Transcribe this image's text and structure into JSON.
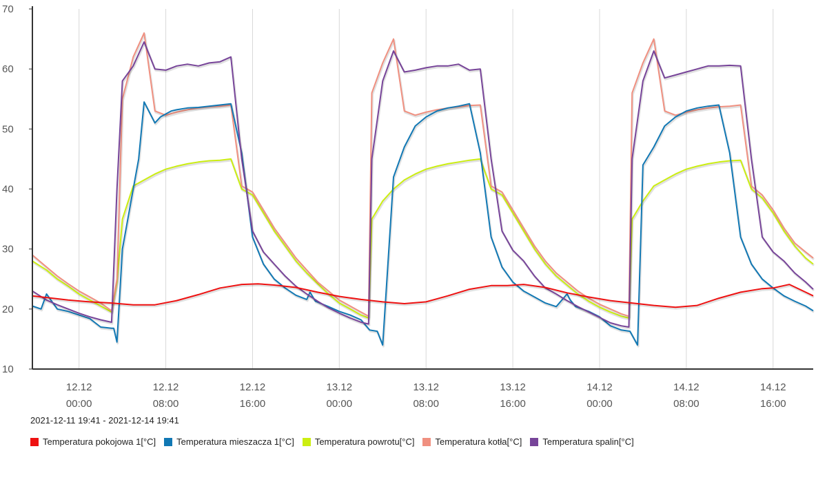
{
  "chart_data": {
    "type": "line",
    "title": "",
    "xlabel": "",
    "ylabel": "",
    "range_label": "2021-12-11 19:41 - 2021-12-14 19:41",
    "x_range_hours": [
      -4.3,
      67.7
    ],
    "ylim": [
      10,
      70
    ],
    "yticks": [
      10,
      20,
      30,
      40,
      50,
      60,
      70
    ],
    "xticks": [
      {
        "hour": 0,
        "date": "12.12",
        "time": "00:00"
      },
      {
        "hour": 8,
        "date": "12.12",
        "time": "08:00"
      },
      {
        "hour": 16,
        "date": "12.12",
        "time": "16:00"
      },
      {
        "hour": 24,
        "date": "13.12",
        "time": "00:00"
      },
      {
        "hour": 32,
        "date": "13.12",
        "time": "08:00"
      },
      {
        "hour": 40,
        "date": "13.12",
        "time": "16:00"
      },
      {
        "hour": 48,
        "date": "14.12",
        "time": "00:00"
      },
      {
        "hour": 56,
        "date": "14.12",
        "time": "08:00"
      },
      {
        "hour": 64,
        "date": "14.12",
        "time": "16:00"
      }
    ],
    "grid": "vertical",
    "legend_position": "bottom-left",
    "series": [
      {
        "name": "Temperatura pokojowa 1[°C]",
        "color": "#ee1111",
        "x": [
          -4.3,
          -1,
          1,
          3,
          5,
          7,
          9,
          11,
          13,
          15,
          16.5,
          18,
          20,
          22,
          24,
          26,
          28,
          30,
          32,
          34,
          36,
          38,
          39.5,
          41,
          43,
          45,
          47,
          49,
          51,
          53,
          55,
          57,
          59,
          61,
          63,
          64,
          65.5,
          67,
          67.7
        ],
        "y": [
          22.2,
          21.5,
          21.2,
          21,
          20.7,
          20.7,
          21.4,
          22.4,
          23.5,
          24.1,
          24.2,
          24,
          23.6,
          22.8,
          22.1,
          21.6,
          21.2,
          20.9,
          21.2,
          22.2,
          23.3,
          23.9,
          23.9,
          24.1,
          23.6,
          22.7,
          22,
          21.4,
          21,
          20.6,
          20.3,
          20.6,
          21.8,
          22.8,
          23.4,
          23.5,
          24.1,
          22.8,
          22.2
        ]
      },
      {
        "name": "Temperatura mieszacza 1[°C]",
        "color": "#1178b4",
        "x": [
          -4.3,
          -3.5,
          -3,
          -2,
          -1,
          0,
          1,
          2,
          3,
          3.2,
          3.5,
          4,
          5,
          5.5,
          6,
          7,
          7.5,
          8,
          8.5,
          9,
          10,
          11,
          12,
          13,
          14,
          15,
          16,
          17,
          18,
          19,
          20,
          21,
          21.3,
          21.8,
          23,
          24,
          25,
          26,
          26.8,
          27.5,
          28,
          29,
          30,
          31,
          32,
          33,
          34,
          35,
          36,
          37,
          38,
          39,
          40,
          41,
          42,
          43,
          44,
          45,
          45.3,
          45.8,
          47,
          48,
          49,
          50,
          50.8,
          51.5,
          52,
          53,
          54,
          55,
          56,
          57,
          58,
          59,
          60,
          61,
          62,
          63,
          64,
          65,
          66,
          67,
          67.7
        ],
        "y": [
          20.5,
          20,
          22.5,
          20,
          19.6,
          19,
          18.4,
          17,
          16.8,
          16.8,
          14.5,
          30,
          40,
          45,
          54.5,
          51,
          52,
          52.5,
          53,
          53.2,
          53.5,
          53.6,
          53.8,
          54,
          54.2,
          46,
          32,
          27.5,
          25,
          23.5,
          22.3,
          21.6,
          22.8,
          21.3,
          20.4,
          19.6,
          19,
          18.2,
          16.5,
          16.3,
          14,
          42,
          47,
          50.5,
          52,
          53,
          53.5,
          53.8,
          54.2,
          46,
          32,
          27,
          24.5,
          23,
          22,
          21,
          20.4,
          22.5,
          21.5,
          20.4,
          19.6,
          18.7,
          17.2,
          16.5,
          16.3,
          14,
          44,
          47,
          50.5,
          52,
          53,
          53.5,
          53.8,
          54,
          46,
          32,
          27.5,
          25,
          23.5,
          22.2,
          21.3,
          20.5,
          19.7
        ]
      },
      {
        "name": "Temperatura powrotu[°C]",
        "color": "#ccee11",
        "x": [
          -4.3,
          -3,
          -2,
          -1,
          0,
          1,
          2,
          3,
          3.5,
          4,
          5,
          6,
          7,
          8,
          9,
          10,
          11,
          12,
          13,
          14,
          15,
          16,
          17,
          18,
          19,
          20,
          21,
          22,
          23,
          24,
          25,
          26,
          26.7,
          27,
          28,
          29,
          30,
          31,
          32,
          33,
          34,
          35,
          36,
          37,
          38,
          39,
          40,
          41,
          42,
          43,
          44,
          45,
          46,
          47,
          48,
          49,
          50,
          50.7,
          51,
          52,
          53,
          54,
          55,
          56,
          57,
          58,
          59,
          60,
          61,
          62,
          63,
          64,
          65,
          66,
          67,
          67.7
        ],
        "y": [
          28,
          26.5,
          25,
          23.8,
          22.5,
          21.5,
          20.5,
          19.5,
          24.5,
          35,
          40.5,
          41.5,
          42.5,
          43.3,
          43.8,
          44.2,
          44.5,
          44.7,
          44.8,
          45,
          40,
          39,
          36,
          33,
          30.5,
          28,
          26,
          24.2,
          22.5,
          21,
          20,
          19,
          18.5,
          35,
          38,
          40,
          41.5,
          42.5,
          43.3,
          43.8,
          44.2,
          44.5,
          44.8,
          45,
          40,
          39,
          36,
          33,
          30,
          27.5,
          25.5,
          24,
          22.5,
          21.3,
          20.3,
          19.5,
          18.8,
          18.5,
          35,
          38,
          40.5,
          41.5,
          42.5,
          43.3,
          43.8,
          44.2,
          44.5,
          44.7,
          44.8,
          40,
          38.5,
          36,
          33,
          30.5,
          28.5,
          27.5
        ]
      },
      {
        "name": "Temperatura kotła[°C]",
        "color": "#f09080",
        "x": [
          -4.3,
          -3,
          -2,
          -1,
          0,
          1,
          2,
          3,
          3.5,
          4,
          5,
          6,
          7,
          8,
          9,
          10,
          11,
          12,
          13,
          14,
          15,
          16,
          17,
          18,
          19,
          20,
          21,
          22,
          23,
          24,
          25,
          26,
          26.7,
          27,
          28,
          29,
          30,
          31,
          32,
          33,
          34,
          35,
          36,
          37,
          38,
          39,
          40,
          41,
          42,
          43,
          44,
          45,
          46,
          47,
          48,
          49,
          50,
          50.7,
          51,
          52,
          53,
          54,
          55,
          56,
          57,
          58,
          59,
          60,
          61,
          62,
          63,
          64,
          65,
          66,
          67,
          67.7
        ],
        "y": [
          29,
          27,
          25.5,
          24.2,
          23,
          22,
          21,
          19.7,
          25,
          55,
          62,
          66,
          53,
          52.3,
          52.8,
          53.2,
          53.5,
          53.7,
          53.8,
          54,
          40.5,
          39.5,
          36.5,
          33.5,
          31,
          28.5,
          26.5,
          24.5,
          23,
          21.5,
          20.5,
          19.5,
          18.8,
          56,
          61,
          65,
          53,
          52.3,
          52.8,
          53.2,
          53.5,
          53.7,
          53.9,
          54,
          40.5,
          39.5,
          36.5,
          33.5,
          30.5,
          28,
          26,
          24.5,
          23,
          21.8,
          20.8,
          20,
          19.2,
          18.8,
          56,
          61,
          65,
          53,
          52.3,
          52.8,
          53.2,
          53.5,
          53.7,
          53.8,
          54,
          40.5,
          39,
          36.5,
          33.5,
          31,
          29.5,
          28.5
        ]
      },
      {
        "name": "Temperatura spalin[°C]",
        "color": "#774499",
        "x": [
          -4.3,
          -3,
          -2,
          -1,
          0,
          1,
          2,
          3,
          3.5,
          4,
          5,
          6,
          7,
          8,
          9,
          10,
          11,
          12,
          13,
          14,
          15,
          16,
          17,
          18,
          19,
          20,
          21,
          22,
          23,
          24,
          25,
          26,
          26.7,
          27,
          28,
          29,
          30,
          31,
          32,
          33,
          34,
          35,
          36,
          37,
          38,
          39,
          40,
          41,
          42,
          43,
          44,
          45,
          46,
          47,
          48,
          49,
          50,
          50.7,
          51,
          52,
          53,
          54,
          55,
          56,
          57,
          58,
          59,
          60,
          61,
          62,
          63,
          64,
          65,
          66,
          67,
          67.7
        ],
        "y": [
          23,
          21.5,
          20.7,
          20,
          19.3,
          18.7,
          18.2,
          17.8,
          40,
          58,
          60.5,
          64.5,
          60,
          59.8,
          60.5,
          60.8,
          60.5,
          61,
          61.2,
          62,
          45,
          33,
          29.5,
          27.5,
          25.5,
          23.8,
          22.5,
          21.3,
          20.2,
          19.3,
          18.5,
          17.8,
          17.5,
          45,
          58,
          63,
          59.5,
          59.8,
          60.2,
          60.5,
          60.5,
          60.8,
          59.8,
          60,
          45,
          33,
          29.8,
          28,
          25.5,
          23.5,
          22.5,
          21.4,
          20.4,
          19.5,
          18.6,
          17.7,
          17.2,
          17,
          45,
          58,
          63,
          58.5,
          59,
          59.5,
          60,
          60.5,
          60.5,
          60.6,
          60.5,
          45,
          32,
          29.5,
          28,
          26,
          24.5,
          23.3
        ]
      }
    ]
  }
}
